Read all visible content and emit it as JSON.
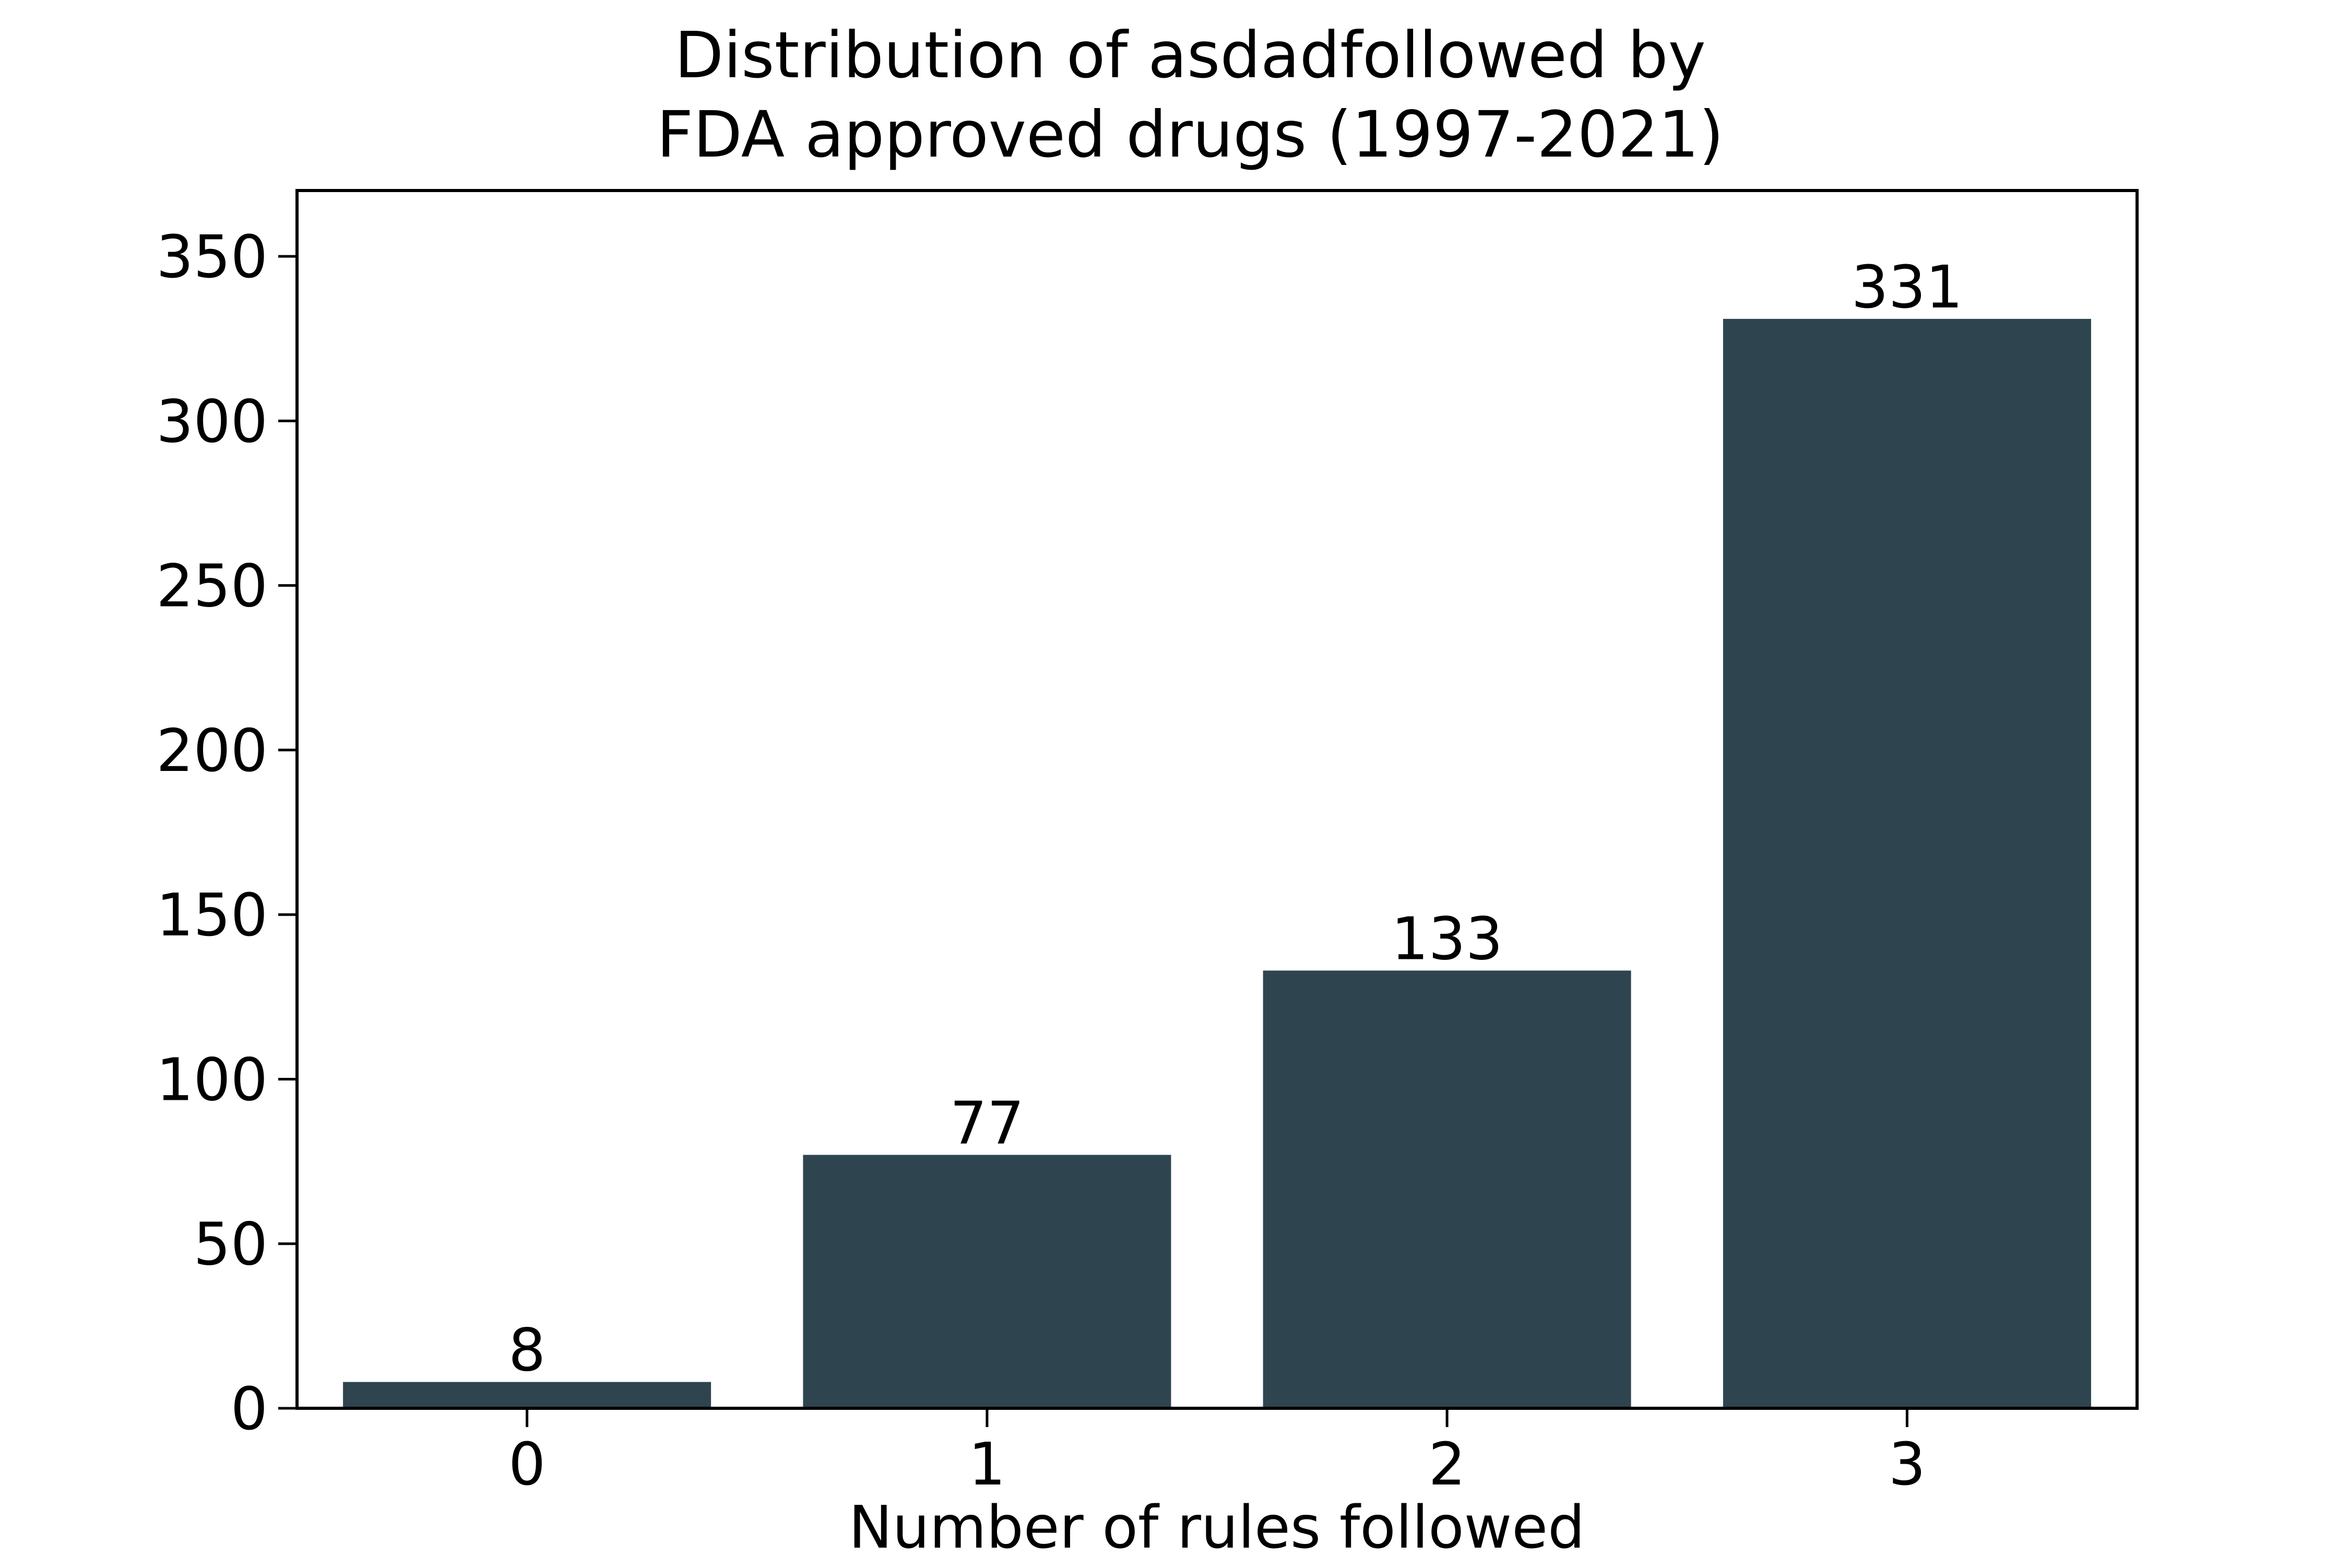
{
  "chart_data": {
    "type": "bar",
    "title_lines": [
      "Distribution of asdadfollowed by",
      "FDA approved drugs (1997-2021)"
    ],
    "xlabel": "Number of rules followed",
    "ylabel": "",
    "categories": [
      "0",
      "1",
      "2",
      "3"
    ],
    "values": [
      8,
      77,
      133,
      331
    ],
    "data_labels": [
      "8",
      "77",
      "133",
      "331"
    ],
    "ylim": [
      0,
      370
    ],
    "yticks": [
      0,
      50,
      100,
      150,
      200,
      250,
      300,
      350
    ],
    "ytick_labels": [
      "0",
      "50",
      "100",
      "150",
      "200",
      "250",
      "300",
      "350"
    ],
    "bar_color": "#2e4550",
    "grid": false,
    "legend": "none"
  }
}
